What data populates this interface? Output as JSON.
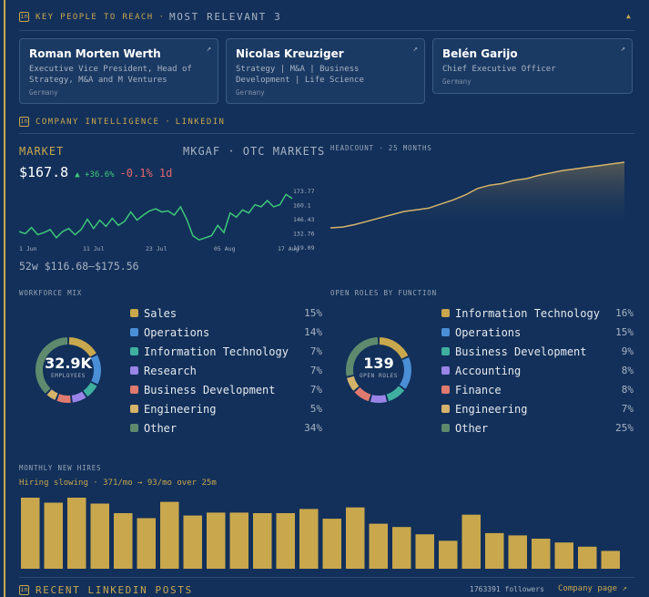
{
  "key_people": {
    "badge": "in",
    "title": "KEY PEOPLE TO REACH",
    "subtitle": "MOST RELEVANT 3",
    "collapse_icon": "▲",
    "people": [
      {
        "name": "Roman Morten Werth",
        "role_lines": [
          "Executive Vice President, Head of",
          "Strategy, M&A and M Ventures"
        ],
        "country": "Germany"
      },
      {
        "name": "Nicolas Kreuziger",
        "role_lines": [
          "Strategy | M&A | Business",
          "Development | Life Science"
        ],
        "country": "Germany"
      },
      {
        "name": "Belén Garijo",
        "role_lines": [
          "Chief Executive Officer"
        ],
        "country": "Germany"
      }
    ],
    "ext_icon": "↗"
  },
  "company_intel": {
    "badge": "in",
    "title": "COMPANY INTELLIGENCE",
    "subtitle": "LINKEDIN"
  },
  "market": {
    "label": "MARKET",
    "ticker": "MKGAF · OTC MARKETS",
    "price": "$167.8",
    "change_pos": "▲ +36.6%",
    "change_neg": "-0.1% 1d",
    "range": "52w $116.68–$175.56",
    "y_ticks": [
      "173.77",
      "160.1",
      "146.43",
      "132.76",
      "119.09"
    ],
    "x_ticks": [
      "1 Jun",
      "11 Jul",
      "23 Jul",
      "05 Aug",
      "17 Aug"
    ],
    "line_color": "#3ec878",
    "chart_data": {
      "type": "line",
      "title": "",
      "ylim": [
        119.09,
        173.77
      ],
      "values": [
        134,
        132,
        138,
        131,
        133,
        136,
        128,
        134,
        137,
        131,
        136,
        146,
        137,
        145,
        139,
        147,
        140,
        144,
        153,
        145,
        150,
        154,
        156,
        153,
        154,
        150,
        158,
        146,
        130,
        126,
        128,
        130,
        140,
        133,
        152,
        148,
        155,
        152,
        160,
        158,
        164,
        158,
        160,
        170,
        166
      ]
    }
  },
  "headcount": {
    "label": "HEADCOUNT · 25 MONTHS",
    "chart_data": {
      "type": "area",
      "values": [
        60,
        60.5,
        62,
        64,
        66,
        68,
        70,
        71,
        72,
        74.5,
        77,
        80,
        84,
        86,
        87,
        89,
        90,
        92,
        93.5,
        95,
        96,
        97,
        98,
        99,
        100
      ]
    }
  },
  "workforce": {
    "label": "WORKFORCE MIX",
    "center_value": "32.9K",
    "center_label": "EMPLOYEES",
    "items": [
      {
        "label": "Sales",
        "pct": "15%",
        "value": 15,
        "color": "#c9a74c"
      },
      {
        "label": "Operations",
        "pct": "14%",
        "value": 14,
        "color": "#4a8fd6"
      },
      {
        "label": "Information Technology",
        "pct": "7%",
        "value": 7,
        "color": "#3fb0a0"
      },
      {
        "label": "Research",
        "pct": "7%",
        "value": 7,
        "color": "#9a84e8"
      },
      {
        "label": "Business Development",
        "pct": "7%",
        "value": 7,
        "color": "#e07a6e"
      },
      {
        "label": "Engineering",
        "pct": "5%",
        "value": 5,
        "color": "#d6b36a"
      },
      {
        "label": "Other",
        "pct": "34%",
        "value": 34,
        "color": "#5f8a6e"
      }
    ]
  },
  "open_roles": {
    "label": "OPEN ROLES BY FUNCTION",
    "center_value": "139",
    "center_label": "OPEN ROLES",
    "items": [
      {
        "label": "Information Technology",
        "pct": "16%",
        "value": 16,
        "color": "#c9a74c"
      },
      {
        "label": "Operations",
        "pct": "15%",
        "value": 15,
        "color": "#4a8fd6"
      },
      {
        "label": "Business Development",
        "pct": "9%",
        "value": 9,
        "color": "#3fb0a0"
      },
      {
        "label": "Accounting",
        "pct": "8%",
        "value": 8,
        "color": "#9a84e8"
      },
      {
        "label": "Finance",
        "pct": "8%",
        "value": 8,
        "color": "#e07a6e"
      },
      {
        "label": "Engineering",
        "pct": "7%",
        "value": 7,
        "color": "#d6b36a"
      },
      {
        "label": "Other",
        "pct": "25%",
        "value": 25,
        "color": "#5f8a6e"
      }
    ]
  },
  "hires": {
    "label": "MONTHLY NEW HIRES",
    "note": "Hiring slowing · 371/mo → 93/mo over 25m",
    "bar_color": "#c9a74c",
    "chart_data": {
      "type": "bar",
      "values": [
        371,
        345,
        371,
        340,
        290,
        264,
        349,
        278,
        293,
        293,
        290,
        290,
        312,
        261,
        320,
        235,
        218,
        180,
        146,
        282,
        186,
        174,
        157,
        137,
        115,
        93
      ]
    }
  },
  "posts": {
    "badge": "in",
    "title": "RECENT LINKEDIN POSTS",
    "followers": "1763391 followers",
    "company_link": "Company page ↗"
  }
}
